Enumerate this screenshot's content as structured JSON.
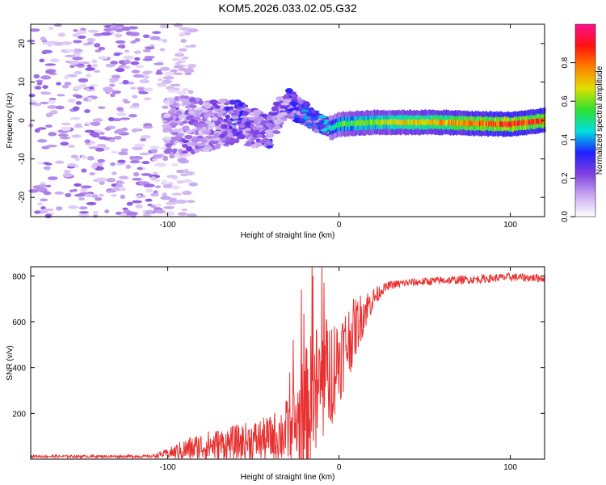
{
  "figure": {
    "title": "KOM5.2026.033.02.05.G32"
  },
  "chart_data": [
    {
      "type": "heatmap",
      "name": "spectrogram",
      "xlabel": "Height of straight line (km)",
      "ylabel": "Frequency (Hz)",
      "xlim": [
        -180,
        120
      ],
      "ylim": [
        -25,
        25
      ],
      "x_ticks": [
        -100,
        0,
        100
      ],
      "x_tick_labels": [
        "-100",
        "0",
        "100"
      ],
      "y_ticks": [
        -20,
        -10,
        0,
        10,
        20
      ],
      "y_tick_labels": [
        "-20",
        "-10",
        "0",
        "10",
        "20"
      ],
      "grid": false,
      "ridge": {
        "description": "dominant frequency track",
        "x": [
          -100,
          -90,
          -80,
          -70,
          -60,
          -50,
          -40,
          -35,
          -30,
          -25,
          -20,
          -15,
          -10,
          -5,
          0,
          20,
          40,
          60,
          80,
          100,
          110,
          120
        ],
        "freq": [
          -2,
          -1,
          -1.5,
          -1,
          0,
          -2,
          -3,
          2,
          5,
          3,
          2,
          0,
          -1,
          -2,
          -1,
          -0.5,
          -0.5,
          -0.5,
          -0.8,
          -1,
          -0.5,
          0
        ],
        "amplitude": [
          0.15,
          0.2,
          0.15,
          0.2,
          0.3,
          0.2,
          0.25,
          0.2,
          0.25,
          0.3,
          0.35,
          0.3,
          0.35,
          0.45,
          0.55,
          0.65,
          0.7,
          0.75,
          0.8,
          0.9,
          0.85,
          0.85
        ]
      },
      "colorbar": {
        "label": "Normalized spectral amplitude",
        "range": [
          0,
          1
        ],
        "ticks": [
          0.0,
          0.2,
          0.4,
          0.6,
          0.8
        ],
        "tick_labels": [
          "0.0",
          "0.2",
          "0.4",
          "0.6",
          "0.8"
        ],
        "colors": [
          "#ffffff",
          "#c8a8f0",
          "#8040e0",
          "#2020ff",
          "#00e0e0",
          "#30e030",
          "#e0e000",
          "#ff8000",
          "#ff1010",
          "#ff1090"
        ]
      }
    },
    {
      "type": "line",
      "name": "snr",
      "xlabel": "Height of straight line (km)",
      "ylabel": "SNR (v/v)",
      "xlim": [
        -180,
        120
      ],
      "ylim": [
        0,
        840
      ],
      "x_ticks": [
        -100,
        0,
        100
      ],
      "x_tick_labels": [
        "-100",
        "0",
        "100"
      ],
      "y_ticks": [
        200,
        400,
        600,
        800
      ],
      "y_tick_labels": [
        "200",
        "400",
        "600",
        "800"
      ],
      "grid": false,
      "color": "#e83030",
      "envelope": {
        "x": [
          -180,
          -110,
          -100,
          -90,
          -80,
          -60,
          -40,
          -30,
          -25,
          -20,
          -15,
          -10,
          -5,
          0,
          5,
          10,
          15,
          20,
          25,
          30,
          40,
          60,
          80,
          100,
          120
        ],
        "baseline": [
          12,
          12,
          25,
          40,
          55,
          70,
          90,
          120,
          150,
          200,
          260,
          330,
          380,
          440,
          510,
          580,
          650,
          700,
          740,
          760,
          770,
          780,
          785,
          795,
          790
        ],
        "noise": [
          6,
          6,
          20,
          50,
          65,
          80,
          100,
          150,
          200,
          280,
          320,
          300,
          250,
          200,
          170,
          130,
          90,
          50,
          25,
          18,
          18,
          18,
          18,
          18,
          18
        ]
      }
    }
  ]
}
